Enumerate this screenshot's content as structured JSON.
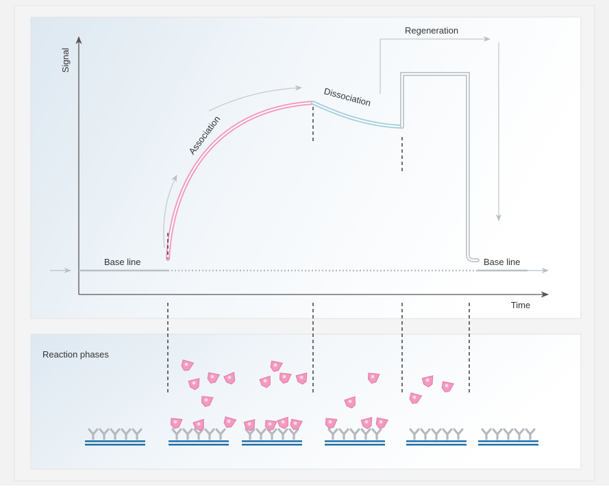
{
  "axes": {
    "y_label": "Signal",
    "x_label": "Time"
  },
  "phases": {
    "association": "Association",
    "dissociation": "Dissociation",
    "regeneration": "Regeneration",
    "baseline_start": "Base line",
    "baseline_end": "Base line"
  },
  "bottom_panel": {
    "title": "Reaction phases"
  }
}
